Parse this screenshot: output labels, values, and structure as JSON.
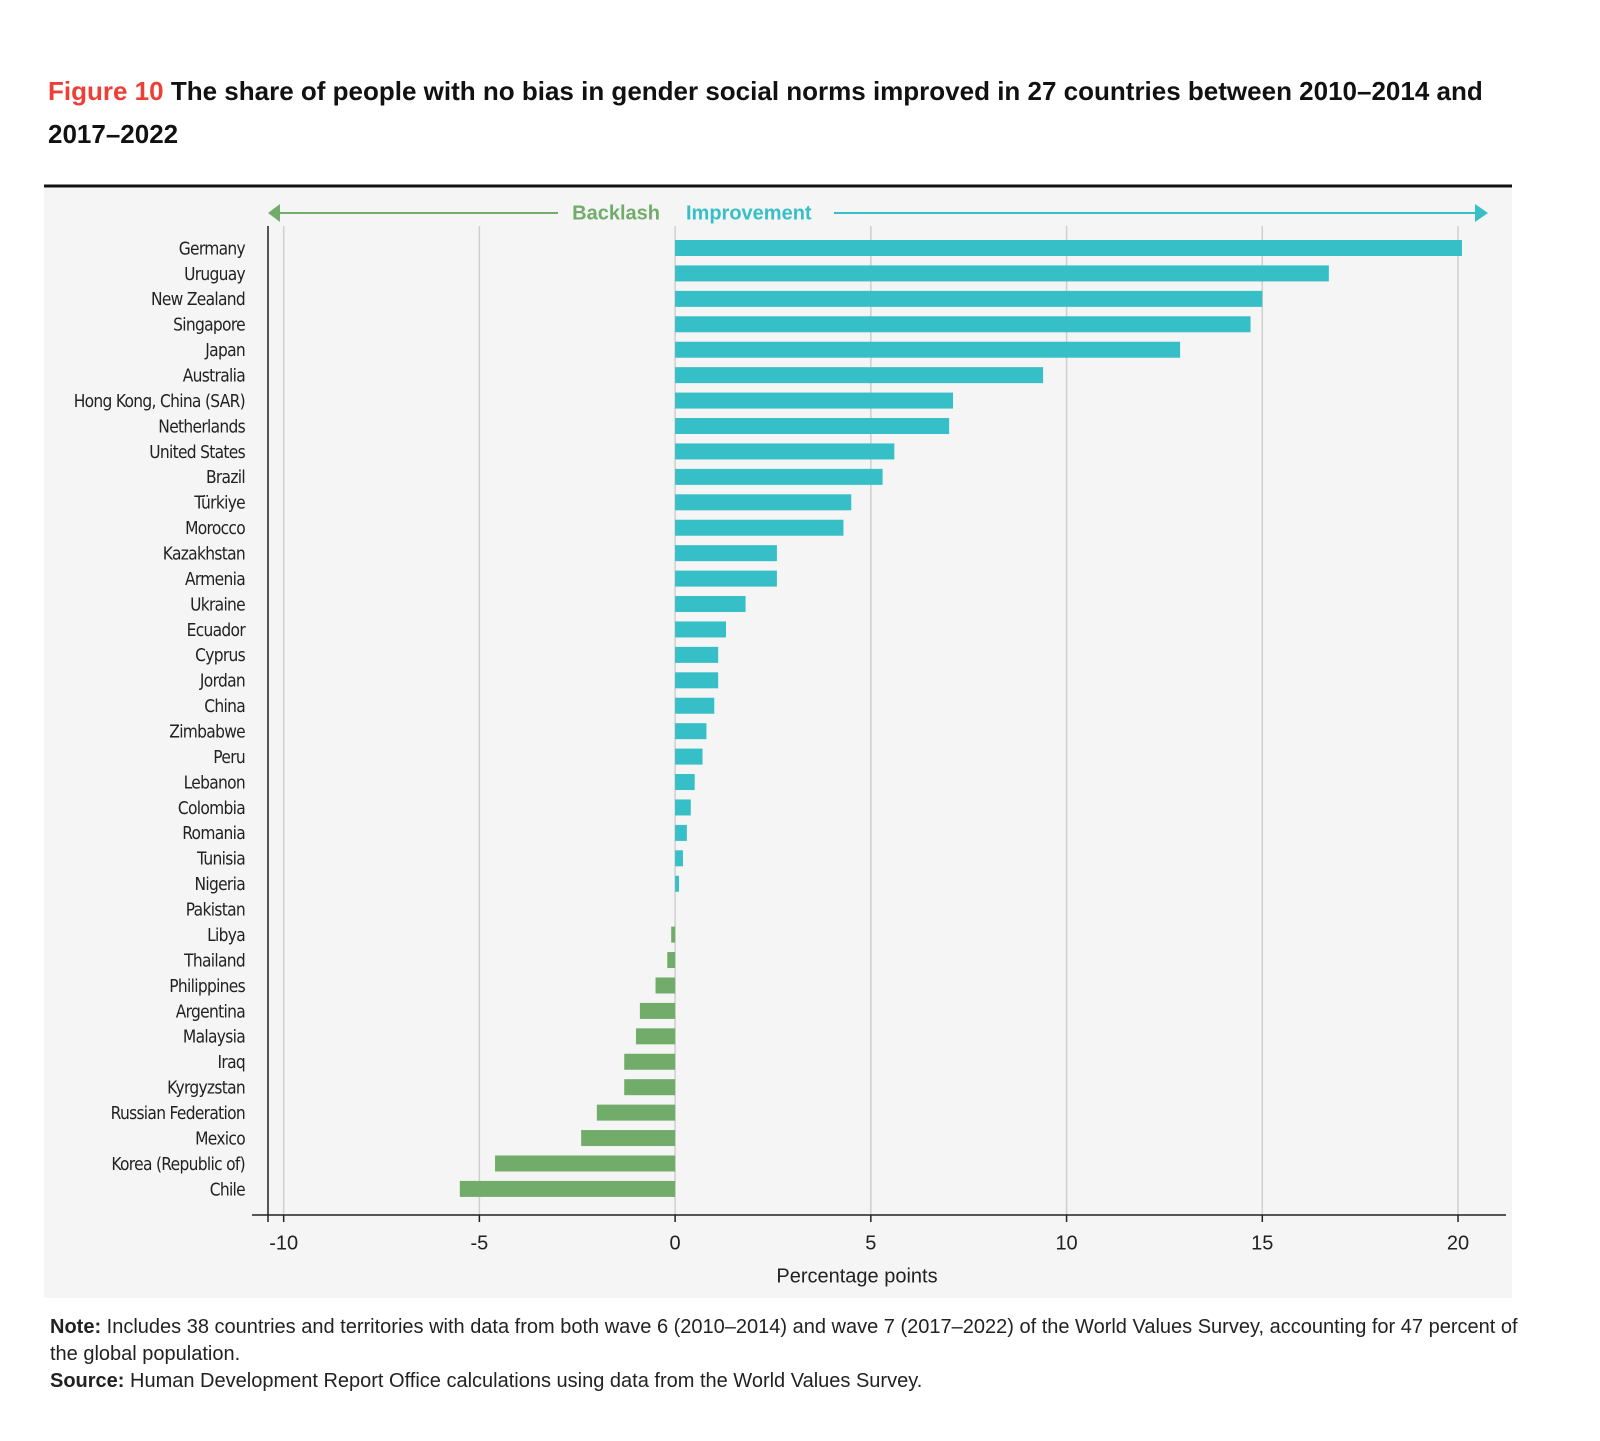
{
  "chart_data": {
    "type": "bar",
    "orientation": "horizontal",
    "figure_label": "Figure 10",
    "title": "The share of people with no bias in gender social norms improved in 27 countries between 2010–2014 and 2017–2022",
    "annotations": {
      "negative": "Backlash",
      "positive": "Improvement"
    },
    "x_label": "Percentage points",
    "categories": [
      "Germany",
      "Uruguay",
      "New Zealand",
      "Singapore",
      "Japan",
      "Australia",
      "Hong Kong, China (SAR)",
      "Netherlands",
      "United States",
      "Brazil",
      "Türkiye",
      "Morocco",
      "Kazakhstan",
      "Armenia",
      "Ukraine",
      "Ecuador",
      "Cyprus",
      "Jordan",
      "China",
      "Zimbabwe",
      "Peru",
      "Lebanon",
      "Colombia",
      "Romania",
      "Tunisia",
      "Nigeria",
      "Pakistan",
      "Libya",
      "Thailand",
      "Philippines",
      "Argentina",
      "Malaysia",
      "Iraq",
      "Kyrgyzstan",
      "Russian Federation",
      "Mexico",
      "Korea (Republic of)",
      "Chile"
    ],
    "values": [
      20.1,
      16.7,
      15.0,
      14.7,
      12.9,
      9.4,
      7.1,
      7.0,
      5.6,
      5.3,
      4.5,
      4.3,
      2.6,
      2.6,
      1.8,
      1.3,
      1.1,
      1.1,
      1.0,
      0.8,
      0.7,
      0.5,
      0.4,
      0.3,
      0.2,
      0.1,
      0,
      -0.1,
      -0.2,
      -0.5,
      -0.9,
      -1.0,
      -1.3,
      -1.3,
      -2.0,
      -2.4,
      -4.6,
      -5.5
    ],
    "colors": {
      "positive": "#36bfc6",
      "negative": "#72ac6a"
    },
    "xlim": [
      -10.4,
      21.2
    ],
    "xticks": [
      -10,
      -5,
      0,
      5,
      10,
      15,
      20
    ],
    "grid": true,
    "note_label": "Note:",
    "note": "Includes 38 countries and territories with data from both wave 6 (2010–2014) and wave 7 (2017–2022) of the World Values Survey, accounting for 47 percent of the global population.",
    "source_label": "Source:",
    "source": "Human Development Report Office calculations using data from the World Values Survey."
  }
}
